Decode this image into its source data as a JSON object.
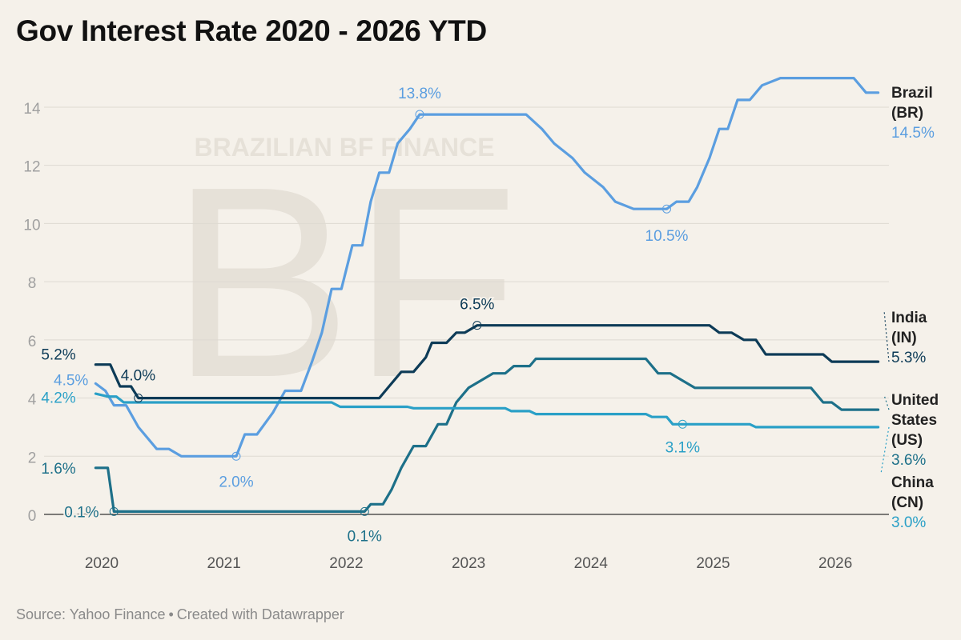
{
  "title": "Gov Interest Rate 2020 - 2026 YTD",
  "footer": {
    "source": "Source: Yahoo Finance",
    "separator": "•",
    "credit": "Created with Datawrapper"
  },
  "watermark": {
    "line": "BRAZILIAN BF FINANCE",
    "monogram": "BF"
  },
  "chart_data": {
    "type": "line",
    "title": "Gov Interest Rate 2020 - 2026 YTD",
    "xlabel": "",
    "ylabel": "",
    "xlim": [
      2019.8,
      2026.4
    ],
    "ylim": [
      0,
      15
    ],
    "x_ticks": [
      2020,
      2021,
      2022,
      2023,
      2024,
      2025,
      2026
    ],
    "x_tick_labels": [
      "2020",
      "2021",
      "2022",
      "2023",
      "2024",
      "2025",
      "2026"
    ],
    "y_ticks": [
      0,
      2,
      4,
      6,
      8,
      10,
      12,
      14
    ],
    "y_tick_labels": [
      "0",
      "2",
      "4",
      "6",
      "8",
      "10",
      "12",
      "14"
    ],
    "grid": true,
    "series": [
      {
        "name": "Brazil",
        "code": "(BR)",
        "end_label": "14.5%",
        "color": "#5b9ee0",
        "x": [
          2019.95,
          2020.03,
          2020.1,
          2020.2,
          2020.3,
          2020.45,
          2020.55,
          2020.65,
          2021.1,
          2021.17,
          2021.27,
          2021.4,
          2021.5,
          2021.63,
          2021.72,
          2021.8,
          2021.88,
          2021.96,
          2022.05,
          2022.13,
          2022.2,
          2022.27,
          2022.35,
          2022.42,
          2022.52,
          2022.6,
          2023.47,
          2023.6,
          2023.7,
          2023.85,
          2023.95,
          2024.1,
          2024.2,
          2024.35,
          2024.62,
          2024.7,
          2024.8,
          2024.87,
          2024.97,
          2025.05,
          2025.12,
          2025.2,
          2025.3,
          2025.4,
          2025.55,
          2026.15,
          2026.25,
          2026.35
        ],
        "y": [
          4.5,
          4.25,
          3.75,
          3.75,
          3.0,
          2.25,
          2.25,
          2.0,
          2.0,
          2.75,
          2.75,
          3.5,
          4.25,
          4.25,
          5.25,
          6.25,
          7.75,
          7.75,
          9.25,
          9.25,
          10.75,
          11.75,
          11.75,
          12.75,
          13.25,
          13.75,
          13.75,
          13.25,
          12.75,
          12.25,
          11.75,
          11.25,
          10.75,
          10.5,
          10.5,
          10.75,
          10.75,
          11.25,
          12.25,
          13.25,
          13.25,
          14.25,
          14.25,
          14.75,
          15.0,
          15.0,
          14.5,
          14.5
        ],
        "annotations": [
          {
            "x": 2021.1,
            "y": 2.0,
            "label": "2.0%"
          },
          {
            "x": 2022.6,
            "y": 13.75,
            "label": "13.8%"
          },
          {
            "x": 2024.62,
            "y": 10.5,
            "label": "10.5%"
          }
        ]
      },
      {
        "name": "India",
        "code": "(IN)",
        "end_label": "5.3%",
        "color": "#0d3b57",
        "x": [
          2019.95,
          2020.07,
          2020.15,
          2020.24,
          2020.3,
          2022.27,
          2022.35,
          2022.45,
          2022.55,
          2022.65,
          2022.7,
          2022.82,
          2022.9,
          2022.97,
          2023.07,
          2024.97,
          2025.05,
          2025.15,
          2025.25,
          2025.35,
          2025.43,
          2025.9,
          2025.97,
          2026.05,
          2026.35
        ],
        "y": [
          5.15,
          5.15,
          4.4,
          4.4,
          4.0,
          4.0,
          4.4,
          4.9,
          4.9,
          5.4,
          5.9,
          5.9,
          6.25,
          6.25,
          6.5,
          6.5,
          6.25,
          6.25,
          6.0,
          6.0,
          5.5,
          5.5,
          5.25,
          5.25,
          5.25
        ],
        "annotations": [
          {
            "x": 2019.95,
            "y": 5.15,
            "label": "5.2%"
          },
          {
            "x": 2020.3,
            "y": 4.0,
            "label": "4.0%"
          },
          {
            "x": 2023.07,
            "y": 6.5,
            "label": "6.5%"
          }
        ]
      },
      {
        "name": "United States",
        "code": "(US)",
        "end_label": "3.6%",
        "color": "#1d7089",
        "x": [
          2019.95,
          2020.05,
          2020.1,
          2022.15,
          2022.2,
          2022.3,
          2022.37,
          2022.45,
          2022.55,
          2022.65,
          2022.75,
          2022.82,
          2022.9,
          2023.0,
          2023.1,
          2023.2,
          2023.3,
          2023.37,
          2023.5,
          2023.55,
          2024.45,
          2024.55,
          2024.65,
          2024.75,
          2024.85,
          2025.8,
          2025.9,
          2025.97,
          2026.05,
          2026.35
        ],
        "y": [
          1.6,
          1.6,
          0.1,
          0.1,
          0.35,
          0.35,
          0.85,
          1.6,
          2.35,
          2.35,
          3.1,
          3.1,
          3.85,
          4.35,
          4.6,
          4.85,
          4.85,
          5.1,
          5.1,
          5.35,
          5.35,
          4.85,
          4.85,
          4.6,
          4.35,
          4.35,
          3.85,
          3.85,
          3.6,
          3.6
        ],
        "annotations": [
          {
            "x": 2019.95,
            "y": 1.6,
            "label": "1.6%"
          },
          {
            "x": 2020.1,
            "y": 0.1,
            "label": "0.1%"
          },
          {
            "x": 2022.15,
            "y": 0.1,
            "label": "0.1%"
          }
        ]
      },
      {
        "name": "China",
        "code": "(CN)",
        "end_label": "3.0%",
        "color": "#2aa0c7",
        "x": [
          2019.95,
          2020.05,
          2020.12,
          2020.18,
          2020.27,
          2021.88,
          2021.95,
          2022.5,
          2022.55,
          2023.3,
          2023.35,
          2023.5,
          2023.55,
          2024.05,
          2024.12,
          2024.45,
          2024.5,
          2024.62,
          2024.67,
          2025.3,
          2025.35,
          2026.35
        ],
        "y": [
          4.15,
          4.05,
          4.05,
          3.85,
          3.85,
          3.85,
          3.7,
          3.7,
          3.65,
          3.65,
          3.55,
          3.55,
          3.45,
          3.45,
          3.45,
          3.45,
          3.35,
          3.35,
          3.1,
          3.1,
          3.0,
          3.0
        ],
        "annotations": [
          {
            "x": 2019.95,
            "y": 4.2,
            "label": "4.2%"
          },
          {
            "x": 2024.75,
            "y": 3.1,
            "label": "3.1%"
          }
        ]
      }
    ],
    "baseline_label": "4.5%"
  }
}
